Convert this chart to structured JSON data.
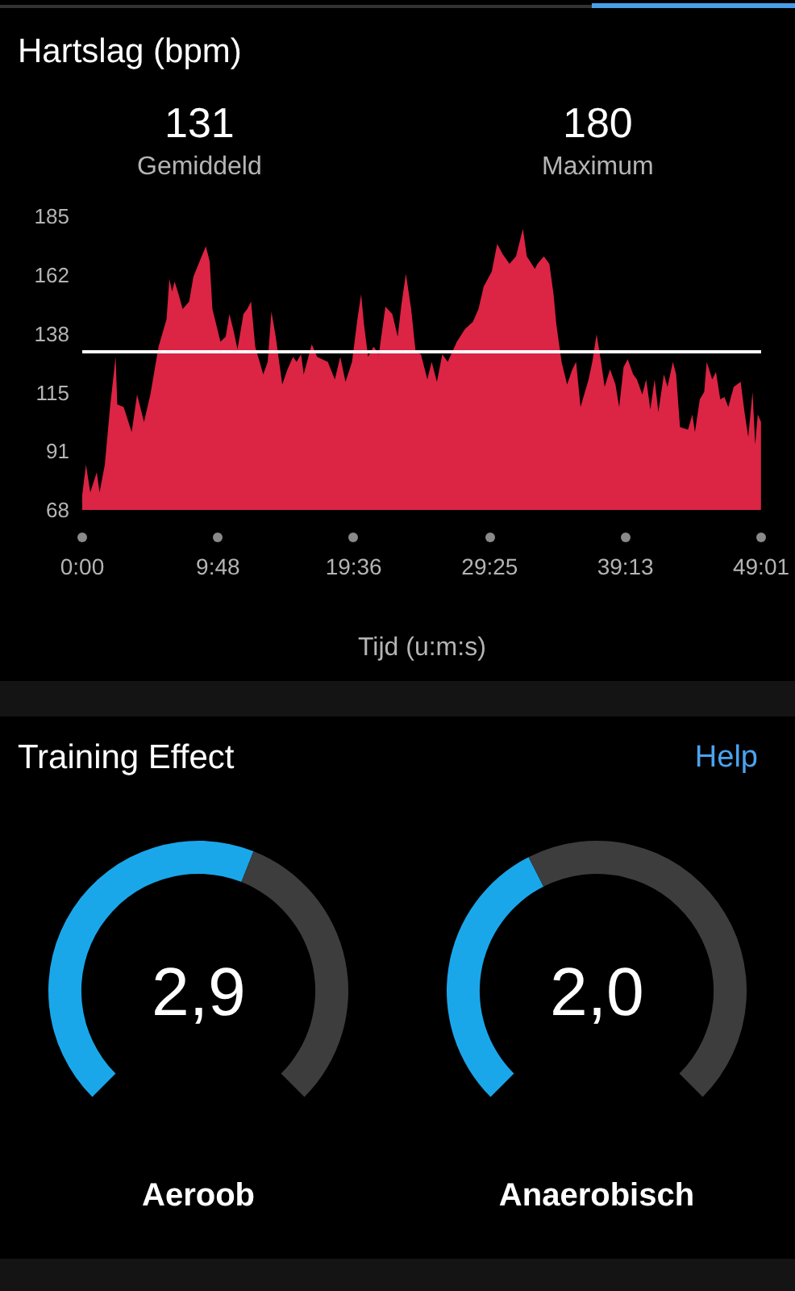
{
  "chart_data": [
    {
      "type": "area",
      "title": "Hartslag (bpm)",
      "xlabel": "Tijd (u:m:s)",
      "annotations": [
        "131",
        "Gemiddeld",
        "180",
        "Maximum"
      ],
      "x": [
        0,
        0.27,
        0.58,
        1.05,
        1.25,
        1.63,
        2.01,
        2.41,
        2.53,
        2.99,
        3.57,
        3.96,
        4.46,
        4.92,
        5.51,
        6.09,
        6.29,
        6.49,
        6.67,
        6.95,
        7.25,
        7.72,
        8.03,
        8.62,
        8.93,
        9.2,
        9.4,
        9.98,
        10.36,
        10.63,
        10.94,
        11.21,
        11.64,
        11.91,
        12.19,
        12.49,
        13.07,
        13.39,
        13.66,
        13.97,
        14.44,
        14.82,
        15.22,
        15.48,
        15.8,
        15.99,
        16.57,
        16.96,
        17.73,
        18.24,
        18.63,
        19.01,
        19.48,
        19.87,
        20.14,
        20.34,
        20.64,
        21.04,
        21.42,
        21.89,
        22.39,
        22.78,
        23.05,
        23.37,
        23.75,
        24.07,
        24.45,
        24.92,
        25.23,
        25.61,
        26,
        26.39,
        27.05,
        27.63,
        28.21,
        28.61,
        28.99,
        29.57,
        29.96,
        30.35,
        30.85,
        31.32,
        31.82,
        32.1,
        32.68,
        32.87,
        33.33,
        33.73,
        34.03,
        34.23,
        34.61,
        35.01,
        35.39,
        35.66,
        35.98,
        36.56,
        36.83,
        37.14,
        37.46,
        37.72,
        38.11,
        38.5,
        38.77,
        39.09,
        39.39,
        39.78,
        40.05,
        40.44,
        40.72,
        41.02,
        41.33,
        41.6,
        42,
        42.26,
        42.65,
        42.88,
        43.16,
        43.74,
        44.05,
        44.24,
        44.59,
        44.91,
        45.09,
        45.49,
        45.76,
        46.07,
        46.37,
        46.65,
        47.04,
        47.54,
        47.82,
        48.09,
        48.4,
        48.59,
        48.78,
        49.01
      ],
      "series": [
        {
          "color": "#dc2444",
          "values": [
            74,
            86,
            75,
            83,
            75,
            86,
            109,
            129,
            110,
            109,
            99,
            114,
            103,
            114,
            133,
            144,
            160,
            155,
            159,
            154,
            148,
            151,
            161,
            169,
            173,
            167,
            148,
            135,
            137,
            146,
            139,
            132,
            146,
            148,
            151,
            133,
            122,
            127,
            147,
            137,
            118,
            124,
            129,
            127,
            130,
            122,
            134,
            129,
            127,
            120,
            129,
            119,
            127,
            144,
            154,
            142,
            129,
            133,
            130,
            149,
            146,
            137,
            150,
            162,
            148,
            131,
            130,
            120,
            127,
            119,
            130,
            127,
            135,
            140,
            143,
            148,
            157,
            163,
            174,
            170,
            166,
            169,
            180,
            169,
            164,
            166,
            169,
            166,
            154,
            142,
            127,
            118,
            124,
            127,
            109,
            120,
            127,
            138,
            127,
            117,
            124,
            118,
            109,
            125,
            128,
            122,
            120,
            114,
            120,
            108,
            120,
            107,
            122,
            117,
            127,
            122,
            101,
            100,
            106,
            99,
            112,
            115,
            127,
            120,
            123,
            112,
            113,
            109,
            117,
            119,
            107,
            97,
            115,
            94,
            106,
            103
          ]
        }
      ],
      "xlim": [
        0,
        49.02
      ],
      "xticks": [
        {
          "value": 0,
          "label": "0:00"
        },
        {
          "value": 9.8,
          "label": "9:48"
        },
        {
          "value": 19.6,
          "label": "19:36"
        },
        {
          "value": 29.42,
          "label": "29:25"
        },
        {
          "value": 39.22,
          "label": "39:13"
        },
        {
          "value": 49.02,
          "label": "49:01"
        }
      ],
      "ylim": [
        68,
        185
      ],
      "yticks": [
        68,
        {
          "value": 91.4,
          "label": "91"
        },
        {
          "value": 114.8,
          "label": "115"
        },
        {
          "value": 138.2,
          "label": "138"
        },
        {
          "value": 161.6,
          "label": "162"
        },
        185
      ],
      "ref_lines": [
        {
          "axis": "y",
          "value": 131,
          "color": "#ffffff"
        }
      ]
    },
    {
      "type": "other",
      "title": "Training Effect",
      "annotations": [
        "Help"
      ]
    },
    {
      "type": "donut",
      "title": "Aeroob",
      "categories": [
        null,
        null
      ],
      "values": [
        58,
        42
      ],
      "colors": [
        "#1aa7ea",
        "#3d3d3d"
      ],
      "annotations": [
        "2,9"
      ]
    },
    {
      "type": "donut",
      "title": "Anaerobisch",
      "categories": [
        null,
        null
      ],
      "values": [
        40,
        60
      ],
      "colors": [
        "#1aa7ea",
        "#3d3d3d"
      ],
      "annotations": [
        "2,0"
      ]
    }
  ]
}
